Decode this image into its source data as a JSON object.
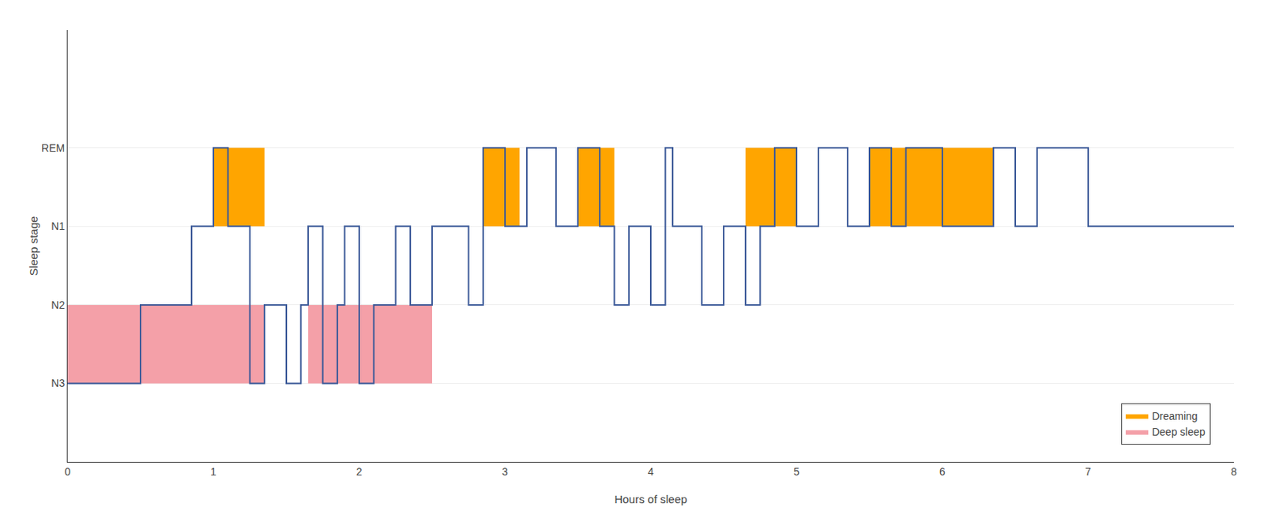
{
  "chart_data": {
    "type": "line",
    "xlabel": "Hours of sleep",
    "ylabel": "Sleep stage",
    "xlim": [
      0,
      8
    ],
    "xticks": [
      0,
      1,
      2,
      3,
      4,
      5,
      6,
      7,
      8
    ],
    "ylim": [
      0,
      5.5
    ],
    "yticks": [
      {
        "value": 1,
        "label": "N3"
      },
      {
        "value": 2,
        "label": "N2"
      },
      {
        "value": 3,
        "label": "N1"
      },
      {
        "value": 4,
        "label": "REM"
      }
    ],
    "grid": "y",
    "legend": "lower right",
    "series": [
      {
        "name": "Dreaming",
        "type": "area",
        "color": "#FFA500",
        "rects": [
          {
            "x": 1.0,
            "y": 3.0,
            "width": 0.35,
            "height": 1.0
          },
          {
            "x": 2.85,
            "y": 3.0,
            "width": 0.25,
            "height": 1.0
          },
          {
            "x": 3.5,
            "y": 3.0,
            "width": 0.25,
            "height": 1.0
          },
          {
            "x": 4.65,
            "y": 3.0,
            "width": 0.35,
            "height": 1.0
          },
          {
            "x": 5.5,
            "y": 3.0,
            "width": 0.85,
            "height": 1.0
          }
        ]
      },
      {
        "name": "Deep sleep",
        "type": "area",
        "color": "#F4A0A8",
        "rects": [
          {
            "x": 0.0,
            "y": 1.0,
            "width": 1.35,
            "height": 1.0
          },
          {
            "x": 1.65,
            "y": 1.0,
            "width": 0.85,
            "height": 1.0
          }
        ]
      },
      {
        "type": "line",
        "line_style": "step",
        "color": "#3B5998",
        "x": [
          0,
          0.5,
          0.5,
          0.85,
          0.85,
          1.0,
          1.0,
          1.1,
          1.1,
          1.25,
          1.25,
          1.35,
          1.35,
          1.5,
          1.5,
          1.6,
          1.6,
          1.65,
          1.65,
          1.75,
          1.75,
          1.85,
          1.85,
          1.9,
          1.9,
          2.0,
          2.0,
          2.1,
          2.1,
          2.25,
          2.25,
          2.35,
          2.35,
          2.5,
          2.5,
          2.75,
          2.75,
          2.85,
          2.85,
          3.0,
          3.0,
          3.15,
          3.15,
          3.35,
          3.35,
          3.5,
          3.5,
          3.65,
          3.65,
          3.75,
          3.75,
          3.85,
          3.85,
          4.0,
          4.0,
          4.1,
          4.1,
          4.15,
          4.15,
          4.35,
          4.35,
          4.5,
          4.5,
          4.65,
          4.65,
          4.75,
          4.75,
          4.85,
          4.85,
          5.0,
          5.0,
          5.15,
          5.15,
          5.35,
          5.35,
          5.5,
          5.5,
          5.65,
          5.65,
          5.75,
          5.75,
          6.0,
          6.0,
          6.35,
          6.35,
          6.5,
          6.5,
          6.65,
          6.65,
          7.0,
          7.0,
          8.0
        ],
        "values": [
          1,
          1,
          2,
          2,
          3,
          3,
          4,
          4,
          3,
          3,
          1,
          1,
          2,
          2,
          1,
          1,
          2,
          2,
          3,
          3,
          1,
          1,
          2,
          2,
          3,
          3,
          1,
          1,
          2,
          2,
          3,
          3,
          2,
          2,
          3,
          3,
          2,
          2,
          4,
          4,
          3,
          3,
          4,
          4,
          3,
          3,
          4,
          4,
          3,
          3,
          2,
          2,
          3,
          3,
          2,
          2,
          4,
          4,
          3,
          3,
          2,
          2,
          3,
          3,
          2,
          2,
          3,
          3,
          4,
          4,
          3,
          3,
          4,
          4,
          3,
          3,
          4,
          4,
          3,
          3,
          4,
          4,
          3,
          3,
          4,
          4,
          3,
          3,
          4,
          4,
          3,
          3
        ]
      }
    ]
  }
}
